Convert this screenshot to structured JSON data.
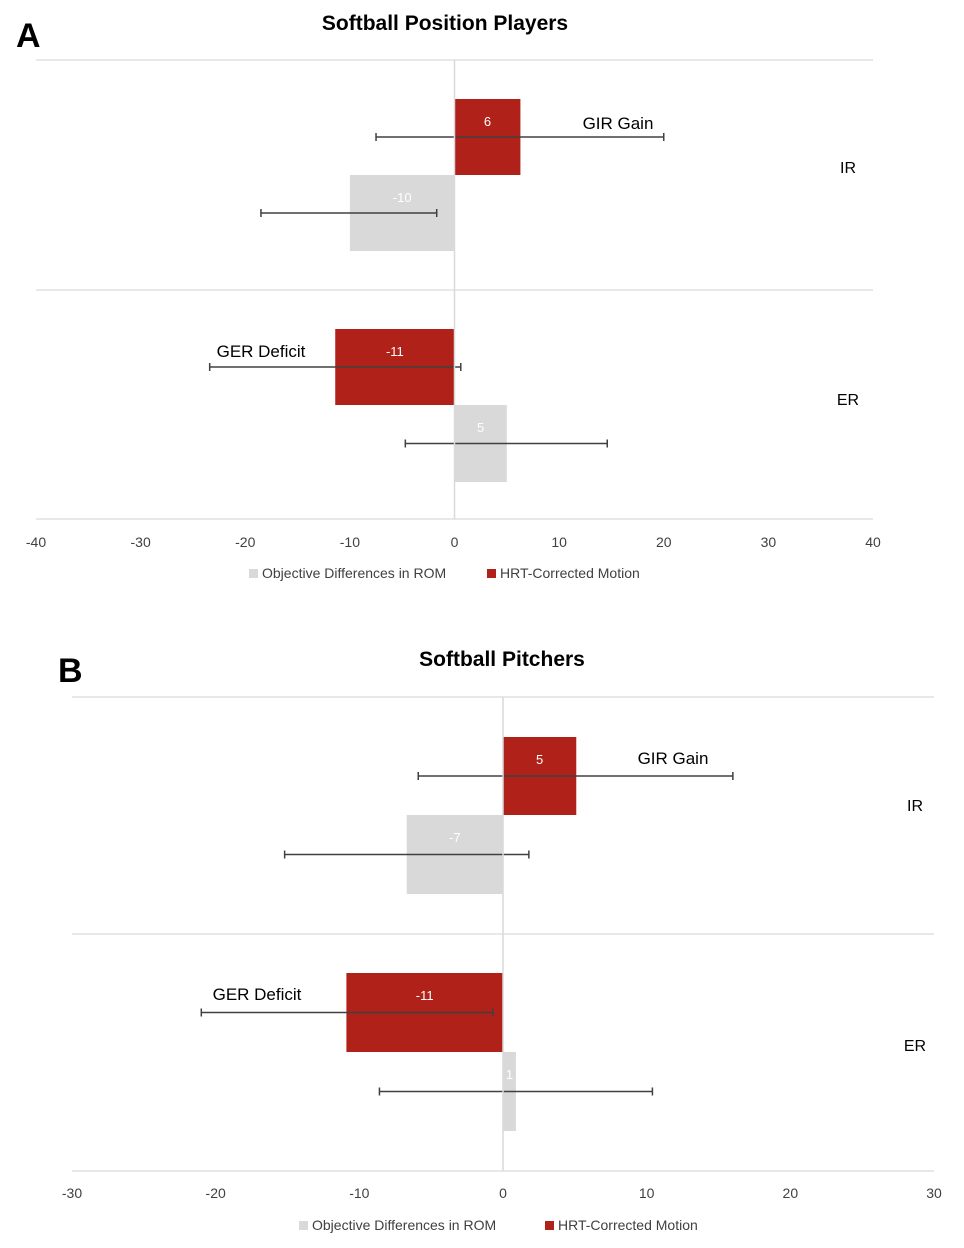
{
  "colors": {
    "objective": "#d9d9d9",
    "hrt": "#b0211a",
    "grid": "#d9d9d9",
    "errorbar": "#404040"
  },
  "chart_data": [
    {
      "panel": "A",
      "type": "bar",
      "orientation": "horizontal",
      "title": "Softball Position Players",
      "xlim": [
        -40,
        40
      ],
      "xticks": [
        "-40",
        "-30",
        "-20",
        "-10",
        "0",
        "10",
        "20",
        "30",
        "40"
      ],
      "categories": [
        "IR",
        "ER"
      ],
      "series": [
        {
          "name": "Objective Differences in ROM",
          "values": [
            -10,
            5
          ],
          "labels": [
            "-10",
            "5"
          ],
          "err_low": [
            -18.5,
            -4.7
          ],
          "err_high": [
            -1.7,
            14.6
          ]
        },
        {
          "name": "HRT-Corrected Motion",
          "values": [
            6.3,
            -11.4
          ],
          "labels": [
            "6",
            "-11"
          ],
          "err_low": [
            -7.5,
            -23.4
          ],
          "err_high": [
            20,
            0.6
          ]
        }
      ],
      "annotations": [
        {
          "text": "GIR Gain",
          "category": "IR"
        },
        {
          "text": "GER Deficit",
          "category": "ER"
        }
      ],
      "legend": "bottom"
    },
    {
      "panel": "B",
      "type": "bar",
      "orientation": "horizontal",
      "title": "Softball Pitchers",
      "xlim": [
        -30,
        30
      ],
      "xticks": [
        "-30",
        "-20",
        "-10",
        "0",
        "10",
        "20",
        "30"
      ],
      "categories": [
        "IR",
        "ER"
      ],
      "series": [
        {
          "name": "Objective Differences in ROM",
          "values": [
            -6.7,
            0.9
          ],
          "labels": [
            "-7",
            "1"
          ],
          "err_low": [
            -15.2,
            -8.6
          ],
          "err_high": [
            1.8,
            10.4
          ]
        },
        {
          "name": "HRT-Corrected Motion",
          "values": [
            5.1,
            -10.9
          ],
          "labels": [
            "5",
            "-11"
          ],
          "err_low": [
            -5.9,
            -21
          ],
          "err_high": [
            16,
            -0.7
          ]
        }
      ],
      "annotations": [
        {
          "text": "GIR Gain",
          "category": "IR"
        },
        {
          "text": "GER Deficit",
          "category": "ER"
        }
      ],
      "legend": "bottom"
    }
  ]
}
